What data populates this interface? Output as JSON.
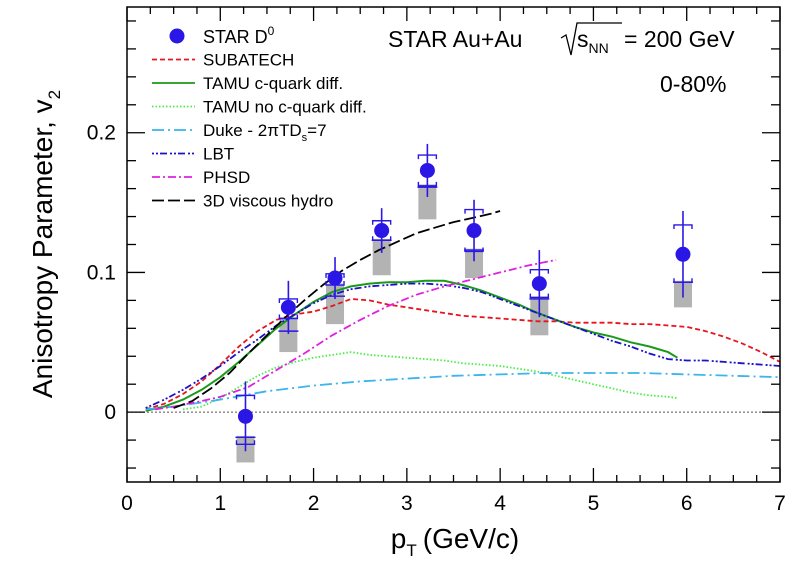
{
  "chart_data": {
    "type": "scatter",
    "title": "STAR Au+Au",
    "energy_label": "= 200 GeV",
    "sqrt_label": "s",
    "sqrt_sub": "NN",
    "centrality": "0-80%",
    "xlabel": "p",
    "xlabel_sub": "T",
    "xlabel_unit": "(GeV/c)",
    "ylabel": "Anisotropy Parameter, v",
    "ylabel_sub": "2",
    "xlim": [
      0,
      7
    ],
    "ylim": [
      -0.05,
      0.29
    ],
    "x_ticks": [
      "0",
      "1",
      "2",
      "3",
      "4",
      "5",
      "6",
      "7"
    ],
    "y_ticks": [
      "0",
      "0.1",
      "0.2"
    ],
    "legend_position": "top-left",
    "data": {
      "name": "STAR D",
      "name_sup": "0",
      "color": "#2a17e6",
      "points": [
        {
          "x": 1.27,
          "y": -0.003,
          "stat": 0.025,
          "sys_lo": 0.02,
          "sys_hi": 0.015,
          "nf_lo": -0.018,
          "nf_box_lo": -0.036
        },
        {
          "x": 1.73,
          "y": 0.075,
          "stat": 0.019,
          "sys_lo": 0.008,
          "sys_hi": 0.006,
          "nf_lo": 0.058,
          "nf_box_lo": 0.043
        },
        {
          "x": 2.23,
          "y": 0.096,
          "stat": 0.015,
          "sys_lo": 0.005,
          "sys_hi": 0.003,
          "nf_lo": 0.083,
          "nf_box_lo": 0.063
        },
        {
          "x": 2.73,
          "y": 0.13,
          "stat": 0.016,
          "sys_lo": 0.007,
          "sys_hi": 0.007,
          "nf_lo": 0.123,
          "nf_box_lo": 0.098
        },
        {
          "x": 3.22,
          "y": 0.173,
          "stat": 0.019,
          "sys_lo": 0.011,
          "sys_hi": 0.011,
          "nf_lo": 0.161,
          "nf_box_lo": 0.138
        },
        {
          "x": 3.72,
          "y": 0.13,
          "stat": 0.022,
          "sys_lo": 0.015,
          "sys_hi": 0.015,
          "nf_lo": 0.116,
          "nf_box_lo": 0.096
        },
        {
          "x": 4.42,
          "y": 0.092,
          "stat": 0.024,
          "sys_lo": 0.01,
          "sys_hi": 0.01,
          "nf_lo": 0.081,
          "nf_box_lo": 0.055
        },
        {
          "x": 5.96,
          "y": 0.113,
          "stat": 0.031,
          "sys_lo": 0.02,
          "sys_hi": 0.021,
          "nf_lo": 0.093,
          "nf_box_lo": 0.075
        }
      ]
    },
    "series": [
      {
        "name": "SUBATECH",
        "color": "#e8141e",
        "dash": "5,3",
        "x": [
          0.2,
          0.4,
          0.6,
          0.8,
          1.0,
          1.2,
          1.4,
          1.6,
          1.8,
          2.0,
          2.2,
          2.4,
          2.6,
          2.8,
          3.0,
          3.2,
          3.4,
          3.6,
          3.8,
          4.0,
          4.2,
          4.4,
          4.6,
          4.8,
          5.0,
          5.2,
          5.4,
          5.6,
          5.8,
          6.0,
          6.2,
          6.4,
          6.6,
          6.8,
          7.0
        ],
        "y": [
          0.002,
          0.006,
          0.013,
          0.022,
          0.034,
          0.047,
          0.058,
          0.066,
          0.07,
          0.072,
          0.076,
          0.081,
          0.08,
          0.077,
          0.075,
          0.073,
          0.071,
          0.069,
          0.068,
          0.067,
          0.066,
          0.065,
          0.065,
          0.064,
          0.064,
          0.064,
          0.063,
          0.063,
          0.062,
          0.061,
          0.058,
          0.054,
          0.049,
          0.043,
          0.036
        ]
      },
      {
        "name": "TAMU c-quark diff.",
        "color": "#1a9a1a",
        "dash": "",
        "x": [
          0.2,
          0.4,
          0.6,
          0.8,
          1.0,
          1.2,
          1.4,
          1.6,
          1.8,
          2.0,
          2.2,
          2.4,
          2.6,
          2.8,
          3.0,
          3.2,
          3.4,
          3.6,
          3.8,
          4.0,
          4.2,
          4.4,
          4.6,
          4.8,
          5.0,
          5.2,
          5.4,
          5.6,
          5.8,
          5.9
        ],
        "y": [
          0.001,
          0.004,
          0.009,
          0.016,
          0.025,
          0.036,
          0.048,
          0.06,
          0.07,
          0.079,
          0.086,
          0.09,
          0.092,
          0.093,
          0.093,
          0.094,
          0.094,
          0.091,
          0.087,
          0.082,
          0.077,
          0.071,
          0.066,
          0.061,
          0.057,
          0.054,
          0.05,
          0.047,
          0.043,
          0.039
        ]
      },
      {
        "name": "TAMU no c-quark diff.",
        "color": "#44ee44",
        "dash": "1.5,2",
        "x": [
          0.6,
          0.8,
          1.0,
          1.2,
          1.4,
          1.6,
          1.8,
          2.0,
          2.2,
          2.4,
          2.6,
          2.8,
          3.0,
          3.2,
          3.4,
          3.6,
          3.8,
          4.0,
          4.2,
          4.4,
          4.6,
          4.8,
          5.0,
          5.2,
          5.4,
          5.6,
          5.8,
          5.9
        ],
        "y": [
          0.002,
          0.004,
          0.01,
          0.018,
          0.026,
          0.032,
          0.036,
          0.039,
          0.041,
          0.043,
          0.041,
          0.04,
          0.039,
          0.038,
          0.037,
          0.035,
          0.034,
          0.033,
          0.031,
          0.029,
          0.026,
          0.023,
          0.02,
          0.017,
          0.014,
          0.012,
          0.011,
          0.01
        ]
      },
      {
        "name": "Duke - 2πTD",
        "name_sub": "s",
        "name_suffix": "=7",
        "color": "#3cb4ee",
        "dash": "12,4,2,4",
        "x": [
          0.2,
          0.5,
          1.0,
          1.5,
          2.0,
          2.5,
          3.0,
          3.5,
          4.0,
          4.5,
          5.0,
          5.5,
          6.0,
          6.5,
          7.0
        ],
        "y": [
          0.002,
          0.004,
          0.009,
          0.015,
          0.019,
          0.022,
          0.024,
          0.026,
          0.027,
          0.028,
          0.028,
          0.028,
          0.027,
          0.026,
          0.025
        ]
      },
      {
        "name": "LBT",
        "color": "#1c10c8",
        "dash": "2,2,2,2,7,3",
        "x": [
          0.2,
          0.4,
          0.6,
          0.8,
          1.0,
          1.2,
          1.4,
          1.6,
          1.8,
          2.0,
          2.2,
          2.4,
          2.6,
          2.8,
          3.0,
          3.2,
          3.4,
          3.6,
          3.8,
          4.0,
          4.2,
          4.4,
          4.6,
          4.8,
          5.0,
          5.2,
          5.4,
          5.6,
          5.8,
          6.0,
          6.2,
          6.4,
          6.6,
          6.8,
          7.0
        ],
        "y": [
          0.003,
          0.009,
          0.016,
          0.024,
          0.033,
          0.043,
          0.052,
          0.062,
          0.07,
          0.078,
          0.084,
          0.088,
          0.09,
          0.091,
          0.092,
          0.092,
          0.091,
          0.089,
          0.086,
          0.081,
          0.076,
          0.071,
          0.066,
          0.061,
          0.056,
          0.051,
          0.047,
          0.042,
          0.038,
          0.037,
          0.037,
          0.036,
          0.035,
          0.034,
          0.033
        ]
      },
      {
        "name": "PHSD",
        "color": "#e020e0",
        "dash": "8,3,2,3",
        "x": [
          0.3,
          0.5,
          0.8,
          1.0,
          1.3,
          1.6,
          1.9,
          2.2,
          2.5,
          2.8,
          3.1,
          3.4,
          3.7,
          4.0,
          4.3,
          4.6
        ],
        "y": [
          0.002,
          0.004,
          0.008,
          0.011,
          0.018,
          0.03,
          0.042,
          0.055,
          0.066,
          0.076,
          0.084,
          0.09,
          0.095,
          0.1,
          0.105,
          0.109
        ]
      },
      {
        "name": "3D viscous hydro",
        "color": "#000000",
        "dash": "12,4",
        "x": [
          0.5,
          0.7,
          0.9,
          1.1,
          1.3,
          1.5,
          1.7,
          1.9,
          2.1,
          2.3,
          2.5,
          2.7,
          2.9,
          3.1,
          3.3,
          3.5,
          3.7,
          3.9,
          4.0
        ],
        "y": [
          0.003,
          0.008,
          0.017,
          0.028,
          0.042,
          0.055,
          0.068,
          0.08,
          0.091,
          0.101,
          0.109,
          0.116,
          0.122,
          0.128,
          0.132,
          0.136,
          0.139,
          0.142,
          0.144
        ]
      }
    ]
  }
}
